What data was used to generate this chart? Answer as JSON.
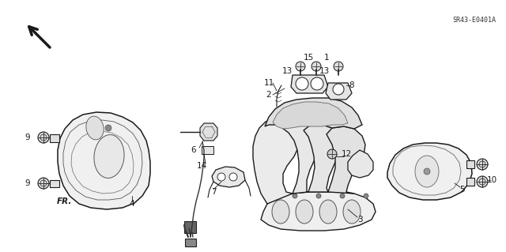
{
  "background_color": "#ffffff",
  "diagram_code": "SR43-E0401A",
  "line_color": "#1a1a1a",
  "label_fontsize": 7.5,
  "code_fontsize": 6.0,
  "fr_fontsize": 7.5
}
